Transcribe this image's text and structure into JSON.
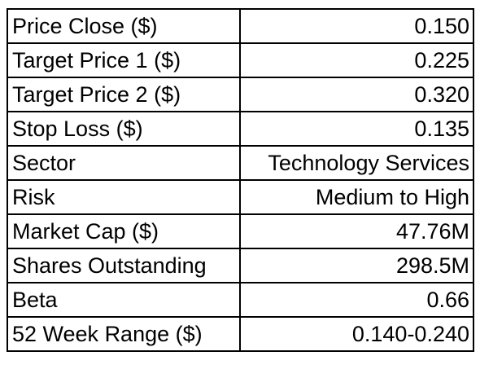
{
  "rows": [
    {
      "label": "Price Close ($)",
      "value": "0.150"
    },
    {
      "label": "Target Price 1 ($)",
      "value": "0.225"
    },
    {
      "label": "Target Price 2 ($)",
      "value": "0.320"
    },
    {
      "label": "Stop Loss ($)",
      "value": "0.135"
    },
    {
      "label": "Sector",
      "value": "Technology Services"
    },
    {
      "label": "Risk",
      "value": "Medium to High"
    },
    {
      "label": "Market Cap ($)",
      "value": "47.76M"
    },
    {
      "label": "Shares Outstanding",
      "value": "298.5M"
    },
    {
      "label": "Beta",
      "value": "0.66"
    },
    {
      "label": "52 Week Range ($)",
      "value": "0.140-0.240"
    }
  ]
}
